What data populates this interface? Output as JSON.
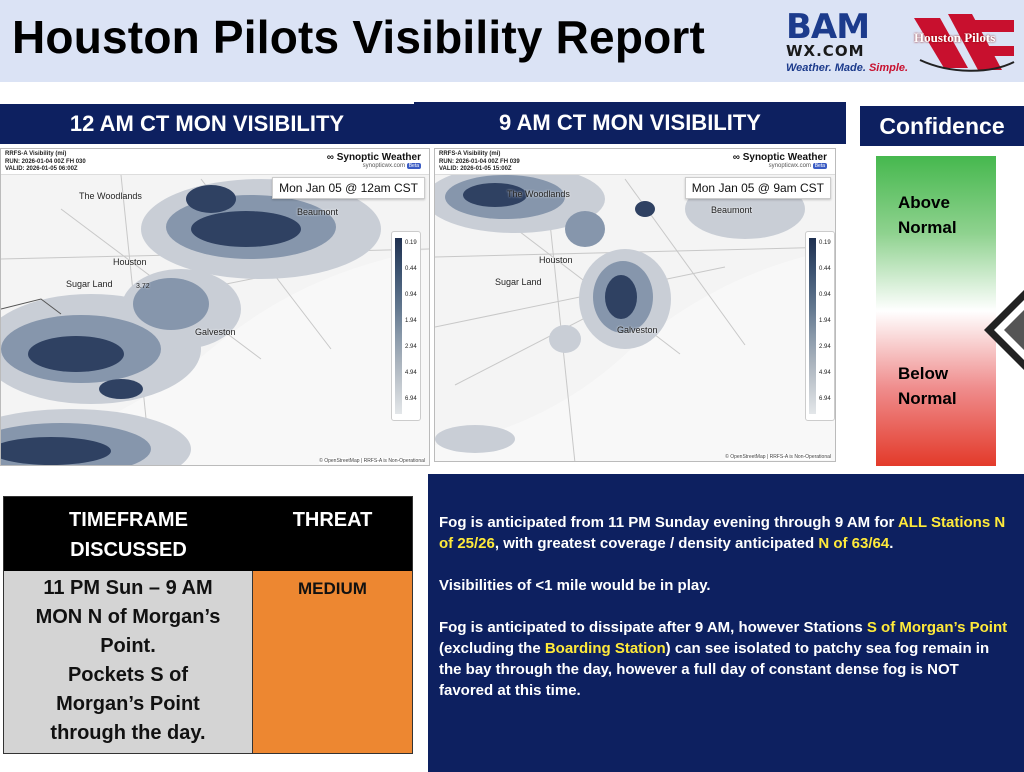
{
  "header": {
    "title": "Houston Pilots Visibility Report",
    "bam_logo": {
      "top": "BAM",
      "mid": "WX.COM",
      "tagline_a": "Weather. Made. ",
      "tagline_b": "Simple."
    },
    "hp_logo": {
      "text": "Houston Pilots"
    }
  },
  "panels": {
    "left_title": "12 AM CT MON VISIBILITY",
    "right_title": "9 AM CT MON VISIBILITY",
    "confidence_title": "Confidence"
  },
  "map_left": {
    "line1": "RRFS-A Visibility (mi)",
    "line2": "RUN: 2026-01-04 00Z FH 030",
    "line3": "VALID: 2026-01-05 06:00Z",
    "brand": "Synoptic Weather",
    "url": "synopticwx.com",
    "beta": "Beta",
    "stamp": "Mon Jan 05 @ 12am CST",
    "cities": {
      "woodlands": "The Woodlands",
      "beaumont": "Beaumont",
      "houston": "Houston",
      "sugarland": "Sugar Land",
      "galveston": "Galveston",
      "val": "3.72"
    },
    "attribution": "© OpenStreetMap | RRFS-A is Non-Operational"
  },
  "map_right": {
    "line1": "RRFS-A Visibility (mi)",
    "line2": "RUN: 2026-01-04 00Z FH 039",
    "line3": "VALID: 2026-01-05 15:00Z",
    "brand": "Synoptic Weather",
    "url": "synopticwx.com",
    "beta": "Beta",
    "stamp": "Mon Jan 05 @ 9am CST",
    "cities": {
      "woodlands": "The Woodlands",
      "beaumont": "Beaumont",
      "houston": "Houston",
      "sugarland": "Sugar Land",
      "galveston": "Galveston"
    },
    "attribution": "© OpenStreetMap | RRFS-A is Non-Operational"
  },
  "legend_ticks": [
    "0.19",
    "0.44",
    "0.94",
    "1.94",
    "2.94",
    "4.94",
    "6.94"
  ],
  "confidence": {
    "above_1": "Above",
    "above_2": "Normal",
    "below_1": "Below",
    "below_2": "Normal"
  },
  "table": {
    "col1_header_1": "TIMEFRAME",
    "col1_header_2": "DISCUSSED",
    "col2_header": "THREAT",
    "timeframe_lines": [
      "11 PM Sun – 9 AM",
      "MON N of Morgan’s",
      "Point.",
      "Pockets S of",
      "Morgan’s Point",
      "through the day."
    ],
    "threat": "MEDIUM"
  },
  "narrative": {
    "p1_a": "Fog is anticipated from 11 PM Sunday evening through 9 AM for ",
    "p1_b": "ALL Stations N of 25/26",
    "p1_c": ", with greatest coverage / density anticipated ",
    "p1_d": "N of 63/64",
    "p1_e": ".",
    "p2": "Visibilities of <1 mile would be in play.",
    "p3_a": "Fog is anticipated to dissipate after 9 AM, however Stations ",
    "p3_b": "S of Morgan’s Point",
    "p3_c": " (excluding the ",
    "p3_d": "Boarding Station",
    "p3_e": ") can see isolated to patchy sea fog remain in the bay through the day, however a full day of constant dense fog is NOT favored at this time."
  }
}
